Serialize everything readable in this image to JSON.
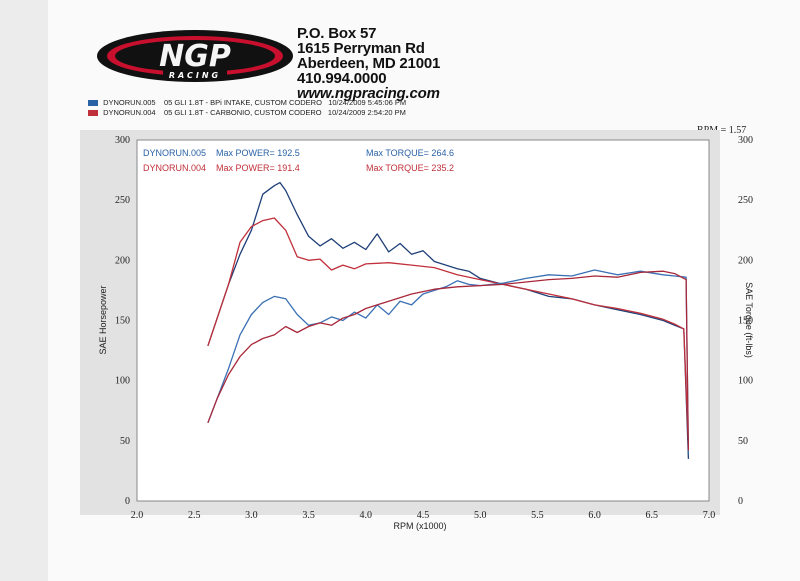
{
  "header": {
    "logo_text": "NGP",
    "logo_sub": "RACING",
    "address_line1": "P.O. Box 57",
    "address_line2": "1615 Perryman Rd",
    "address_line3": "Aberdeen, MD 21001",
    "phone": "410.994.0000",
    "website": "www.ngpracing.com"
  },
  "runs": [
    {
      "id": "DYNORUN.005",
      "desc": "05 GLI 1.8T - BPi INTAKE, CUSTOM CODERO",
      "date": "10/24/2009 5:45:06 PM",
      "color": "#2a62a6"
    },
    {
      "id": "DYNORUN.004",
      "desc": "05 GLI 1.8T - CARBONIO, CUSTOM CODERO",
      "date": "10/24/2009 2:54:20 PM",
      "color": "#c0303a"
    }
  ],
  "rpm_rate": "RPM = 1.57",
  "legend": [
    {
      "run": "DYNORUN.005",
      "power": "Max POWER= 192.5",
      "torque": "Max TORQUE= 264.6",
      "color": "#2a62a6"
    },
    {
      "run": "DYNORUN.004",
      "power": "Max POWER= 191.4",
      "torque": "Max TORQUE= 235.2",
      "color": "#c0303a"
    }
  ],
  "chart_data": {
    "type": "line",
    "xlabel": "RPM (x1000)",
    "ylabel_left": "SAE Horsepower",
    "ylabel_right": "SAE Torque (ft-lbs)",
    "xlim": [
      2.0,
      7.0
    ],
    "ylim": [
      0,
      300
    ],
    "x_ticks": [
      "2.0",
      "2.5",
      "3.0",
      "3.5",
      "4.0",
      "4.5",
      "5.0",
      "5.5",
      "6.0",
      "6.5",
      "7.0"
    ],
    "y_ticks": [
      "0",
      "50",
      "100",
      "150",
      "200",
      "250",
      "300"
    ],
    "grid": false,
    "series": [
      {
        "name": "DYNORUN.005 torque",
        "color": "#1f3f78",
        "x": [
          2.62,
          2.8,
          2.9,
          3.0,
          3.1,
          3.2,
          3.25,
          3.3,
          3.4,
          3.5,
          3.6,
          3.7,
          3.8,
          3.9,
          4.0,
          4.1,
          4.2,
          4.3,
          4.4,
          4.5,
          4.6,
          4.7,
          4.8,
          4.9,
          5.0,
          5.2,
          5.4,
          5.6,
          5.8,
          6.0,
          6.2,
          6.4,
          6.6,
          6.7,
          6.78,
          6.82
        ],
        "y": [
          129,
          180,
          205,
          225,
          255,
          262,
          264.6,
          258,
          238,
          220,
          212,
          218,
          210,
          215,
          209,
          222,
          207,
          214,
          205,
          208,
          199,
          196,
          193,
          191,
          185,
          180,
          176,
          170,
          168,
          163,
          159,
          155,
          150,
          146,
          143,
          35
        ]
      },
      {
        "name": "DYNORUN.004 torque",
        "color": "#c0303a",
        "x": [
          2.62,
          2.8,
          2.9,
          3.0,
          3.1,
          3.2,
          3.3,
          3.4,
          3.5,
          3.6,
          3.7,
          3.8,
          3.9,
          4.0,
          4.2,
          4.4,
          4.6,
          4.8,
          5.0,
          5.2,
          5.4,
          5.6,
          5.8,
          6.0,
          6.2,
          6.4,
          6.6,
          6.7,
          6.78,
          6.82
        ],
        "y": [
          129,
          180,
          215,
          228,
          233,
          235.2,
          225,
          203,
          200,
          201,
          192,
          196,
          193,
          197,
          198,
          196,
          194,
          188,
          184,
          180,
          176,
          172,
          168,
          163,
          160,
          156,
          151,
          147,
          143,
          45
        ]
      },
      {
        "name": "DYNORUN.005 power",
        "color": "#3a70b4",
        "x": [
          2.62,
          2.7,
          2.8,
          2.9,
          3.0,
          3.1,
          3.2,
          3.3,
          3.4,
          3.5,
          3.6,
          3.7,
          3.8,
          3.9,
          4.0,
          4.1,
          4.2,
          4.3,
          4.4,
          4.5,
          4.6,
          4.7,
          4.8,
          4.9,
          5.0,
          5.2,
          5.4,
          5.6,
          5.8,
          6.0,
          6.2,
          6.4,
          6.6,
          6.7,
          6.8,
          6.82
        ],
        "y": [
          65,
          85,
          110,
          138,
          155,
          165,
          170,
          168,
          155,
          146,
          148,
          153,
          150,
          157,
          152,
          163,
          155,
          166,
          163,
          172,
          175,
          178,
          183,
          180,
          179,
          181,
          185,
          188,
          187,
          192,
          188,
          191,
          188,
          187,
          186,
          40
        ]
      },
      {
        "name": "DYNORUN.004 power",
        "color": "#a8283a",
        "x": [
          2.62,
          2.7,
          2.8,
          2.9,
          3.0,
          3.1,
          3.2,
          3.3,
          3.4,
          3.5,
          3.6,
          3.7,
          3.8,
          3.9,
          4.0,
          4.2,
          4.4,
          4.6,
          4.8,
          5.0,
          5.2,
          5.4,
          5.6,
          5.8,
          6.0,
          6.2,
          6.4,
          6.6,
          6.7,
          6.8,
          6.82
        ],
        "y": [
          65,
          85,
          105,
          120,
          130,
          135,
          138,
          145,
          140,
          145,
          148,
          146,
          152,
          155,
          160,
          166,
          172,
          176,
          178,
          179,
          180,
          182,
          184,
          185,
          187,
          186,
          190,
          191,
          189,
          184,
          42
        ]
      }
    ]
  }
}
